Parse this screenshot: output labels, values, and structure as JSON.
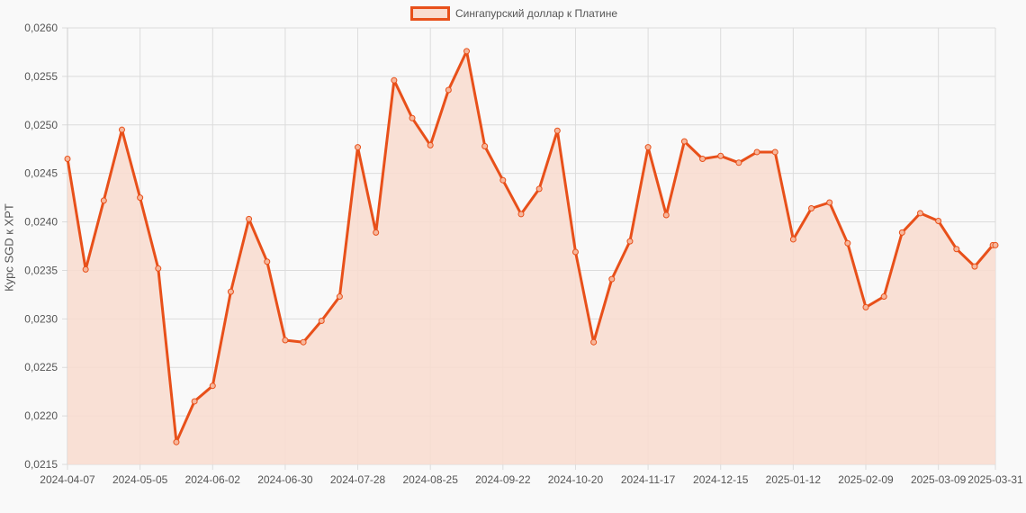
{
  "legend": {
    "label": "Сингапурский доллар к Платине",
    "color": "#e8501a",
    "fill": "#f9dccf"
  },
  "axis": {
    "ylabel": "Курс SGD к XPT"
  },
  "chart_data": {
    "type": "area",
    "title": "",
    "xlabel": "",
    "ylabel": "Курс SGD к XPT",
    "ylim": [
      0.0215,
      0.026
    ],
    "yticks": [
      "0,0215",
      "0,0220",
      "0,0225",
      "0,0230",
      "0,0235",
      "0,0240",
      "0,0245",
      "0,0250",
      "0,0255",
      "0,0260"
    ],
    "xtick_labels": [
      "2024-04-07",
      "2024-05-05",
      "2024-06-02",
      "2024-06-30",
      "2024-07-28",
      "2024-08-25",
      "2024-09-22",
      "2024-10-20",
      "2024-11-17",
      "2024-12-15",
      "2025-01-12",
      "2025-02-09",
      "2025-03-09",
      "2025-03-31"
    ],
    "grid": true,
    "legend_position": "top",
    "series": [
      {
        "name": "Сингапурский доллар к Платине",
        "x": [
          "2024-04-07",
          "2024-04-14",
          "2024-04-21",
          "2024-04-28",
          "2024-05-05",
          "2024-05-12",
          "2024-05-19",
          "2024-05-26",
          "2024-06-02",
          "2024-06-09",
          "2024-06-16",
          "2024-06-23",
          "2024-06-30",
          "2024-07-07",
          "2024-07-14",
          "2024-07-21",
          "2024-07-28",
          "2024-08-04",
          "2024-08-11",
          "2024-08-18",
          "2024-08-25",
          "2024-09-01",
          "2024-09-08",
          "2024-09-15",
          "2024-09-22",
          "2024-09-29",
          "2024-10-06",
          "2024-10-13",
          "2024-10-20",
          "2024-10-27",
          "2024-11-03",
          "2024-11-10",
          "2024-11-17",
          "2024-11-24",
          "2024-12-01",
          "2024-12-08",
          "2024-12-15",
          "2024-12-22",
          "2024-12-29",
          "2025-01-05",
          "2025-01-12",
          "2025-01-19",
          "2025-01-26",
          "2025-02-02",
          "2025-02-09",
          "2025-02-16",
          "2025-02-23",
          "2025-03-02",
          "2025-03-09",
          "2025-03-16",
          "2025-03-23",
          "2025-03-30",
          "2025-03-31"
        ],
        "values": [
          0.02465,
          0.02351,
          0.02422,
          0.02495,
          0.02425,
          0.02352,
          0.02173,
          0.02215,
          0.02231,
          0.02328,
          0.02403,
          0.02359,
          0.02278,
          0.02276,
          0.02298,
          0.02323,
          0.02477,
          0.02389,
          0.02546,
          0.02507,
          0.02479,
          0.02536,
          0.02576,
          0.02478,
          0.02443,
          0.02408,
          0.02434,
          0.02494,
          0.02369,
          0.02276,
          0.02341,
          0.0238,
          0.02477,
          0.02407,
          0.02483,
          0.02465,
          0.02468,
          0.02461,
          0.02472,
          0.02472,
          0.02382,
          0.02414,
          0.0242,
          0.02378,
          0.02312,
          0.02323,
          0.02389,
          0.02409,
          0.02401,
          0.02372,
          0.02354,
          0.02376,
          0.02376
        ]
      }
    ]
  }
}
